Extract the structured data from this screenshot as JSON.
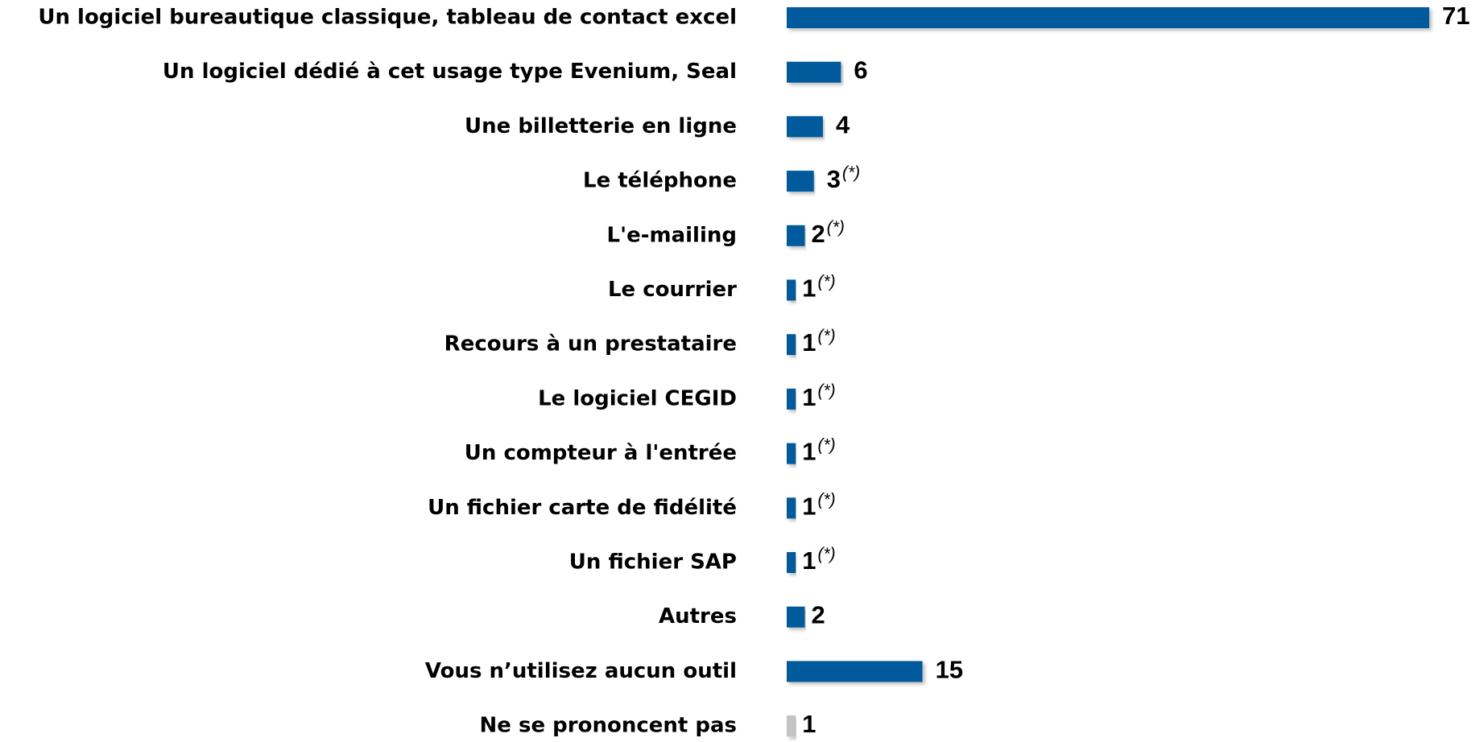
{
  "chart_data": {
    "type": "bar",
    "orientation": "horizontal",
    "categories": [
      "Un logiciel bureautique classique, tableau de contact excel",
      "Un logiciel dédié à cet usage type Evenium, Seal",
      "Une billetterie en ligne",
      "Le téléphone",
      "L'e-mailing",
      "Le courrier",
      "Recours à un prestataire",
      "Le logiciel CEGID",
      "Un compteur à l'entrée",
      "Un fichier carte de fidélité",
      "Un fichier SAP",
      "Autres",
      "Vous n’utilisez aucun outil",
      "Ne se prononcent pas"
    ],
    "values": [
      71,
      6,
      4,
      3,
      2,
      1,
      1,
      1,
      1,
      1,
      1,
      2,
      15,
      1
    ],
    "notes": [
      null,
      null,
      null,
      "(*)",
      "(*)",
      "(*)",
      "(*)",
      "(*)",
      "(*)",
      "(*)",
      "(*)",
      null,
      null,
      null
    ],
    "colors": [
      "#005a9c",
      "#005a9c",
      "#005a9c",
      "#005a9c",
      "#005a9c",
      "#005a9c",
      "#005a9c",
      "#005a9c",
      "#005a9c",
      "#005a9c",
      "#005a9c",
      "#005a9c",
      "#005a9c",
      "#c4c4c4"
    ]
  }
}
